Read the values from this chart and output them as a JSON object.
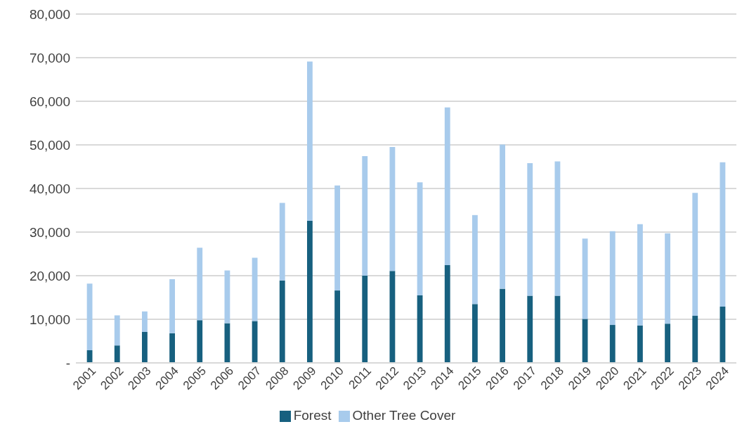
{
  "chart_data": {
    "type": "bar",
    "stacked": true,
    "categories": [
      "2001",
      "2002",
      "2003",
      "2004",
      "2005",
      "2006",
      "2007",
      "2008",
      "2009",
      "2010",
      "2011",
      "2012",
      "2013",
      "2014",
      "2015",
      "2016",
      "2017",
      "2018",
      "2019",
      "2020",
      "2021",
      "2022",
      "2023",
      "2024"
    ],
    "series": [
      {
        "name": "Forest",
        "color": "#17607f",
        "values": [
          2900,
          4000,
          7100,
          6800,
          9800,
          9100,
          9600,
          18900,
          32600,
          16600,
          20000,
          21100,
          15500,
          22400,
          13500,
          17000,
          15400,
          15400,
          10100,
          8700,
          8600,
          9000,
          10800,
          12900
        ]
      },
      {
        "name": "Other Tree Cover",
        "color": "#a8cbec",
        "values": [
          15300,
          6900,
          4700,
          12400,
          16600,
          12100,
          14500,
          17800,
          36500,
          24100,
          27400,
          28400,
          25900,
          36200,
          20400,
          33100,
          30400,
          30800,
          18400,
          21500,
          23200,
          20700,
          28200,
          33100
        ]
      }
    ],
    "ylim": [
      0,
      80000
    ],
    "yticks": [
      {
        "value": 0,
        "label": "-"
      },
      {
        "value": 10000,
        "label": "10,000"
      },
      {
        "value": 20000,
        "label": "20,000"
      },
      {
        "value": 30000,
        "label": "30,000"
      },
      {
        "value": 40000,
        "label": "40,000"
      },
      {
        "value": 50000,
        "label": "50,000"
      },
      {
        "value": 60000,
        "label": "60,000"
      },
      {
        "value": 70000,
        "label": "70,000"
      },
      {
        "value": 80000,
        "label": "80,000"
      }
    ],
    "grid": "y",
    "legend": "bottom"
  }
}
